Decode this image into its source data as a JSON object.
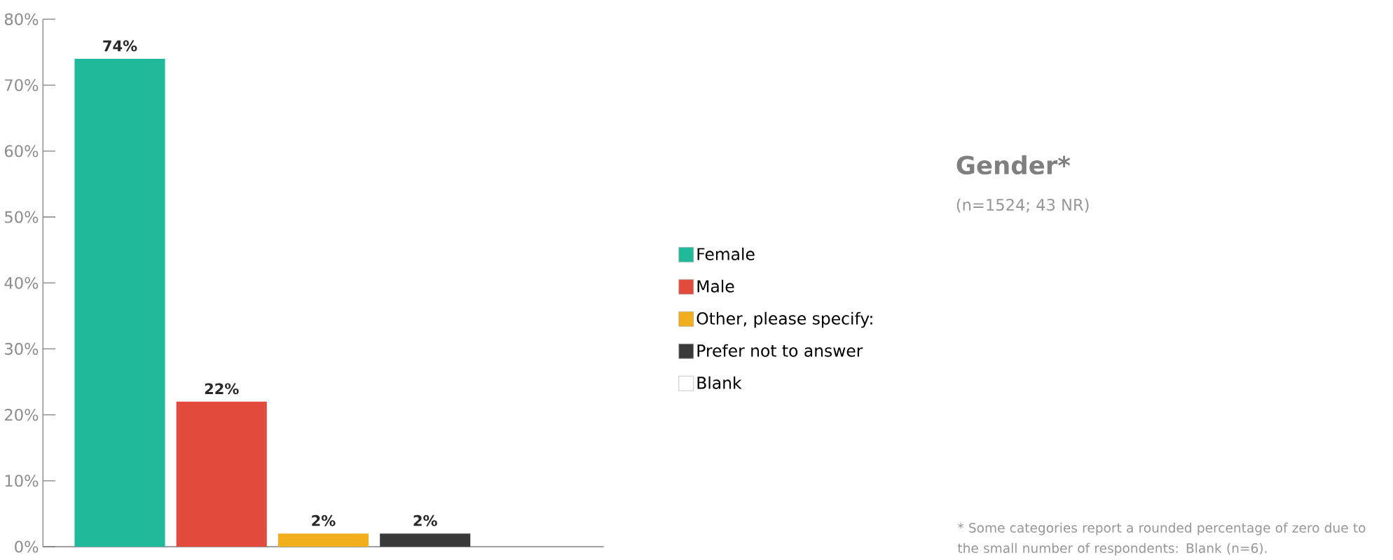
{
  "chart_data": {
    "type": "bar",
    "title": "Gender*",
    "subtitle": "(n=1524; 43 NR)",
    "categories": [
      null
    ],
    "series": [
      {
        "name": "Female",
        "color": "#20b99a",
        "values": [
          74
        ],
        "value_labels": [
          "74%"
        ]
      },
      {
        "name": "Male",
        "color": "#e24b3b",
        "values": [
          22
        ],
        "value_labels": [
          "22%"
        ]
      },
      {
        "name": "Other, please specify:",
        "color": "#f2ae1c",
        "values": [
          2
        ],
        "value_labels": [
          "2%"
        ]
      },
      {
        "name": "Prefer not to answer",
        "color": "#3a3a3a",
        "values": [
          2
        ],
        "value_labels": [
          "2%"
        ]
      },
      {
        "name": "Blank",
        "color": "#ffffff",
        "values": [
          0
        ],
        "value_labels": [
          null
        ]
      }
    ],
    "ylim": [
      0,
      80
    ],
    "yticks": [
      {
        "value": 0,
        "label": "0%"
      },
      {
        "value": 10,
        "label": "10%"
      },
      {
        "value": 20,
        "label": "20%"
      },
      {
        "value": 30,
        "label": "30%"
      },
      {
        "value": 40,
        "label": "40%"
      },
      {
        "value": 50,
        "label": "50%"
      },
      {
        "value": 60,
        "label": "60%"
      },
      {
        "value": 70,
        "label": "70%"
      },
      {
        "value": 80,
        "label": "80%"
      }
    ],
    "grid": false,
    "legend": "right",
    "annotations": [
      "* Some categories report a rounded percentage of zero due to the small number of respondents: Blank (n=6)."
    ]
  }
}
